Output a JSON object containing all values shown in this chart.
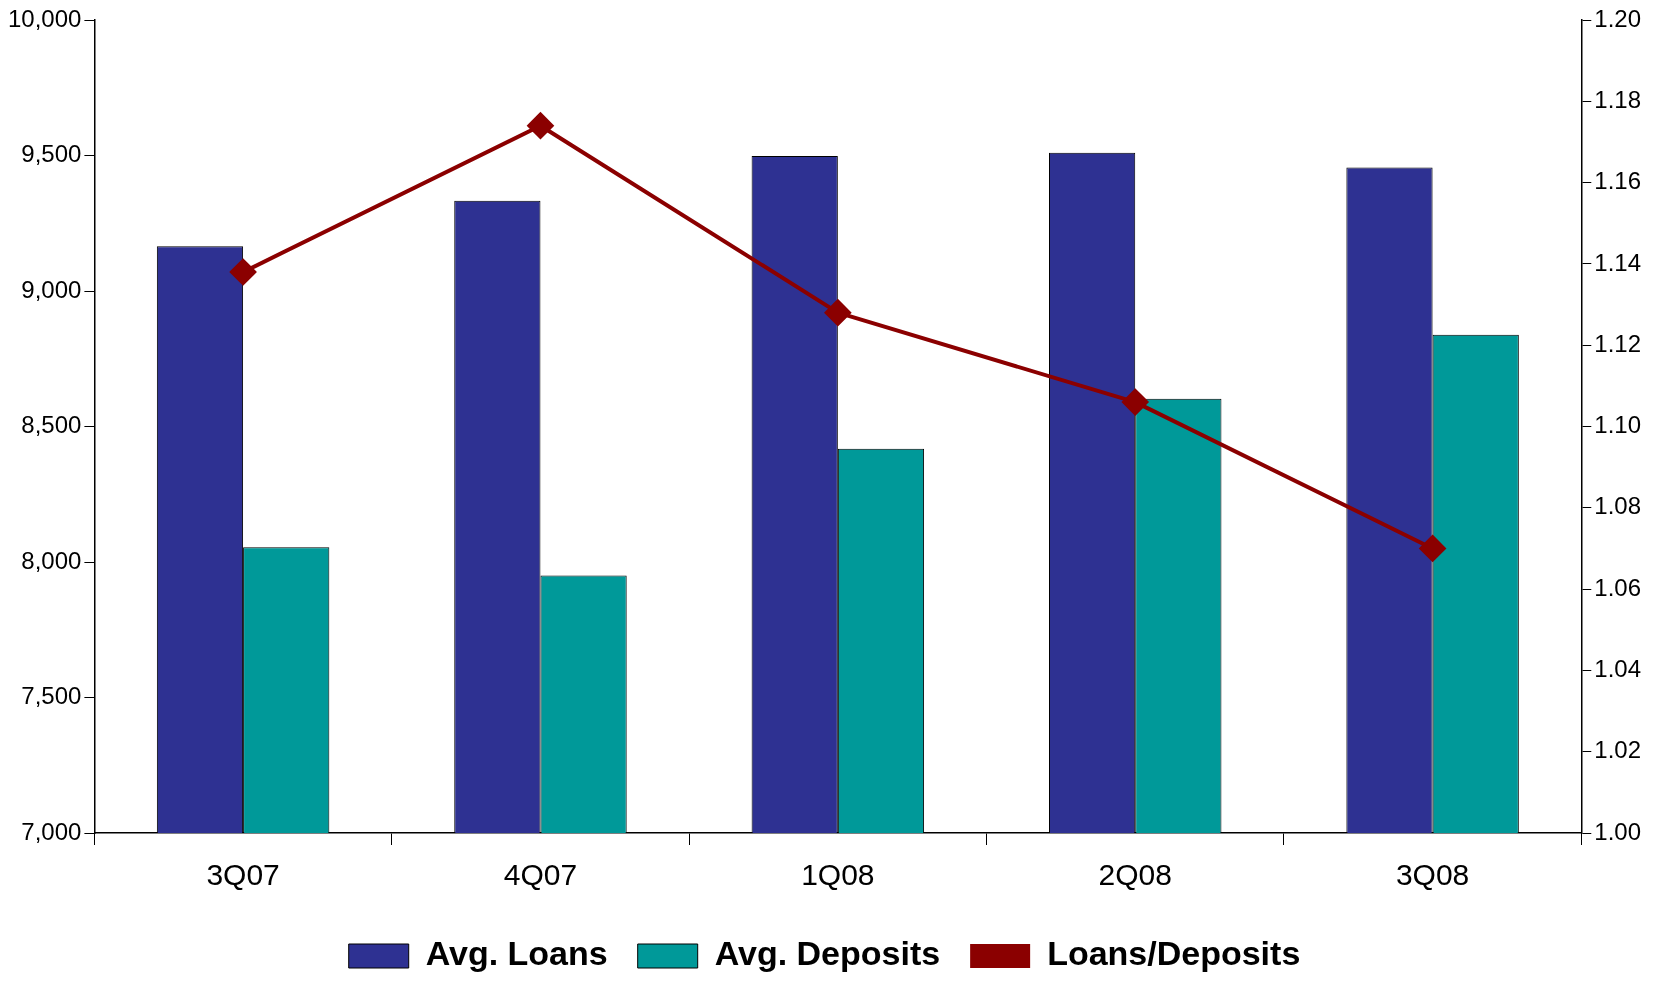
{
  "chart_data": {
    "type": "bar",
    "categories": [
      "3Q07",
      "4Q07",
      "1Q08",
      "2Q08",
      "3Q08"
    ],
    "series": [
      {
        "name": "Avg. Loans",
        "color": "#2e3192",
        "values": [
          9165,
          9333,
          9498,
          9510,
          9456
        ]
      },
      {
        "name": "Avg. Deposits",
        "color": "#009999",
        "values": [
          8054,
          7950,
          8418,
          8602,
          8839
        ]
      },
      {
        "name": "Loans/Deposits",
        "type": "line",
        "axis": "y2",
        "color": "#8b0000",
        "marker": "diamond",
        "values": [
          1.138,
          1.174,
          1.128,
          1.106,
          1.07
        ]
      }
    ],
    "ylim": [
      7000,
      10000
    ],
    "yticks": [
      {
        "value": 7000,
        "label": "7,000"
      },
      {
        "value": 7500,
        "label": "7,500"
      },
      {
        "value": 8000,
        "label": "8,000"
      },
      {
        "value": 8500,
        "label": "8,500"
      },
      {
        "value": 9000,
        "label": "9,000"
      },
      {
        "value": 9500,
        "label": "9,500"
      },
      {
        "value": 10000,
        "label": "10,000"
      }
    ],
    "y2lim": [
      1.0,
      1.2
    ],
    "y2ticks": [
      {
        "value": 1.0,
        "label": "1.00"
      },
      {
        "value": 1.02,
        "label": "1.02"
      },
      {
        "value": 1.04,
        "label": "1.04"
      },
      {
        "value": 1.06,
        "label": "1.06"
      },
      {
        "value": 1.08,
        "label": "1.08"
      },
      {
        "value": 1.1,
        "label": "1.10"
      },
      {
        "value": 1.12,
        "label": "1.12"
      },
      {
        "value": 1.14,
        "label": "1.14"
      },
      {
        "value": 1.16,
        "label": "1.16"
      },
      {
        "value": 1.18,
        "label": "1.18"
      },
      {
        "value": 1.2,
        "label": "1.20"
      }
    ],
    "grid": false,
    "legend": "bottom"
  }
}
